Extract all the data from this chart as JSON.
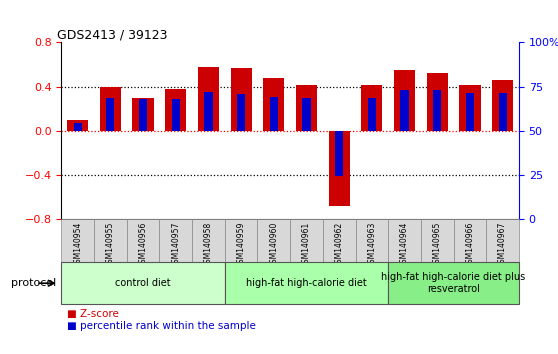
{
  "title": "GDS2413 / 39123",
  "samples": [
    "GSM140954",
    "GSM140955",
    "GSM140956",
    "GSM140957",
    "GSM140958",
    "GSM140959",
    "GSM140960",
    "GSM140961",
    "GSM140962",
    "GSM140963",
    "GSM140964",
    "GSM140965",
    "GSM140966",
    "GSM140967"
  ],
  "zscore": [
    0.1,
    0.4,
    0.3,
    0.38,
    0.58,
    0.57,
    0.48,
    0.42,
    -0.68,
    0.42,
    0.55,
    0.52,
    0.42,
    0.46
  ],
  "percentile": [
    0.07,
    0.3,
    0.29,
    0.29,
    0.35,
    0.33,
    0.31,
    0.3,
    -0.41,
    0.3,
    0.37,
    0.37,
    0.34,
    0.34
  ],
  "zscore_color": "#cc0000",
  "percentile_color": "#0000cc",
  "ylim": [
    -0.8,
    0.8
  ],
  "yticks": [
    -0.8,
    -0.4,
    0.0,
    0.4,
    0.8
  ],
  "right_yticks": [
    0,
    25,
    50,
    75,
    100
  ],
  "right_ytick_labels": [
    "0",
    "25",
    "50",
    "75",
    "100%"
  ],
  "groups": [
    {
      "label": "control diet",
      "start": 0,
      "end": 4,
      "color": "#ccffcc"
    },
    {
      "label": "high-fat high-calorie diet",
      "start": 5,
      "end": 9,
      "color": "#aaffaa"
    },
    {
      "label": "high-fat high-calorie diet plus\nresveratrol",
      "start": 10,
      "end": 13,
      "color": "#88ee88"
    }
  ],
  "protocol_label": "protocol",
  "legend_zscore": "Z-score",
  "legend_percentile": "percentile rank within the sample",
  "bar_width": 0.65,
  "blue_bar_width": 0.25
}
